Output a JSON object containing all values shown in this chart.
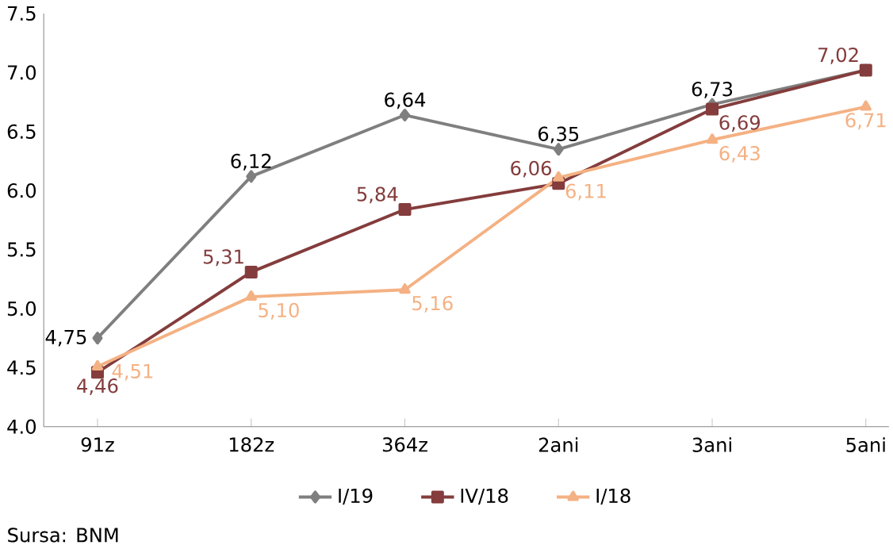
{
  "chart_data": {
    "type": "line",
    "categories": [
      "91z",
      "182z",
      "364z",
      "2ani",
      "3ani",
      "5ani"
    ],
    "series": [
      {
        "name": "I/19",
        "color": "#7f7f7f",
        "marker": "diamond",
        "values": [
          4.75,
          6.12,
          6.64,
          6.35,
          6.73,
          7.02
        ],
        "value_labels": [
          "4,75",
          "6,12",
          "6,64",
          "6,35",
          "6,73",
          null
        ]
      },
      {
        "name": "IV/18",
        "color": "#843c3c",
        "marker": "square",
        "values": [
          4.46,
          5.31,
          5.84,
          6.06,
          6.69,
          7.02
        ],
        "value_labels": [
          "4,46",
          "5,31",
          "5,84",
          "6,06",
          "6,69",
          "7,02"
        ]
      },
      {
        "name": "I/18",
        "color": "#f4b183",
        "marker": "triangle",
        "values": [
          4.51,
          5.1,
          5.16,
          6.11,
          6.43,
          6.71
        ],
        "value_labels": [
          "4,51",
          "5,10",
          "5,16",
          "6,11",
          "6,43",
          "6,71"
        ]
      }
    ],
    "ylim": [
      4.0,
      7.5
    ],
    "yticks": [
      {
        "value": 4.0,
        "label": "4.0"
      },
      {
        "value": 4.5,
        "label": "4.5"
      },
      {
        "value": 5.0,
        "label": "5.0"
      },
      {
        "value": 5.5,
        "label": "5.5"
      },
      {
        "value": 6.0,
        "label": "6.0"
      },
      {
        "value": 6.5,
        "label": "6.5"
      },
      {
        "value": 7.0,
        "label": "7.0"
      },
      {
        "value": 7.5,
        "label": "7.5"
      }
    ],
    "legend": "bottom",
    "annotations": [
      "Sursa: BNM"
    ]
  }
}
